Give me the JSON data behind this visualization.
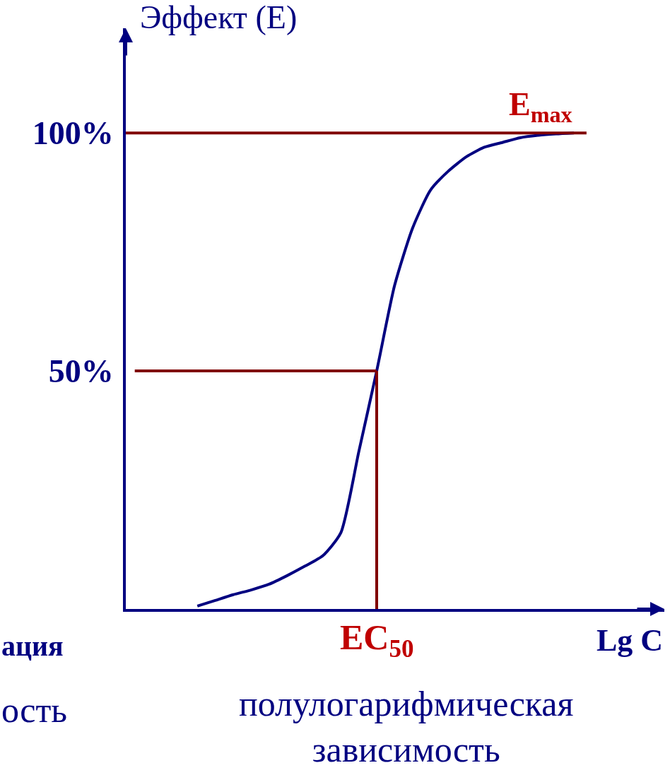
{
  "chart_data": {
    "type": "line",
    "ylabel": "Эффект (E)",
    "xlabel": "Lg C",
    "categories": [
      null,
      null,
      null,
      null,
      null,
      null,
      null,
      null,
      null,
      null,
      null,
      null,
      null,
      null,
      null,
      null,
      null,
      null,
      null,
      null,
      null,
      null
    ],
    "series": [
      {
        "color": "#000080",
        "values": [
          0.6,
          1.8,
          3.0,
          4.0,
          5.2,
          7.0,
          9.0,
          11.2,
          16,
          33,
          50,
          68,
          80,
          88,
          92,
          95,
          97,
          98,
          99,
          99.5,
          99.8,
          100
        ]
      }
    ],
    "ylim": [
      0,
      122
    ],
    "yticks": [
      {
        "value": 50,
        "label": "50%"
      },
      {
        "value": 100,
        "label": "100%"
      }
    ],
    "tick_labels": "y",
    "marker": "none",
    "line_style": "solid",
    "ref_lines": [
      {
        "axis": "y",
        "value": 100,
        "label": "E$_{max}$",
        "color": "#800000"
      },
      {
        "axis": "y",
        "value": 50,
        "color": "#800000"
      }
    ],
    "annotations": [
      "EC$_{50}$",
      "полулогарифмическая\nзависимость",
      "ация",
      "ость"
    ]
  }
}
